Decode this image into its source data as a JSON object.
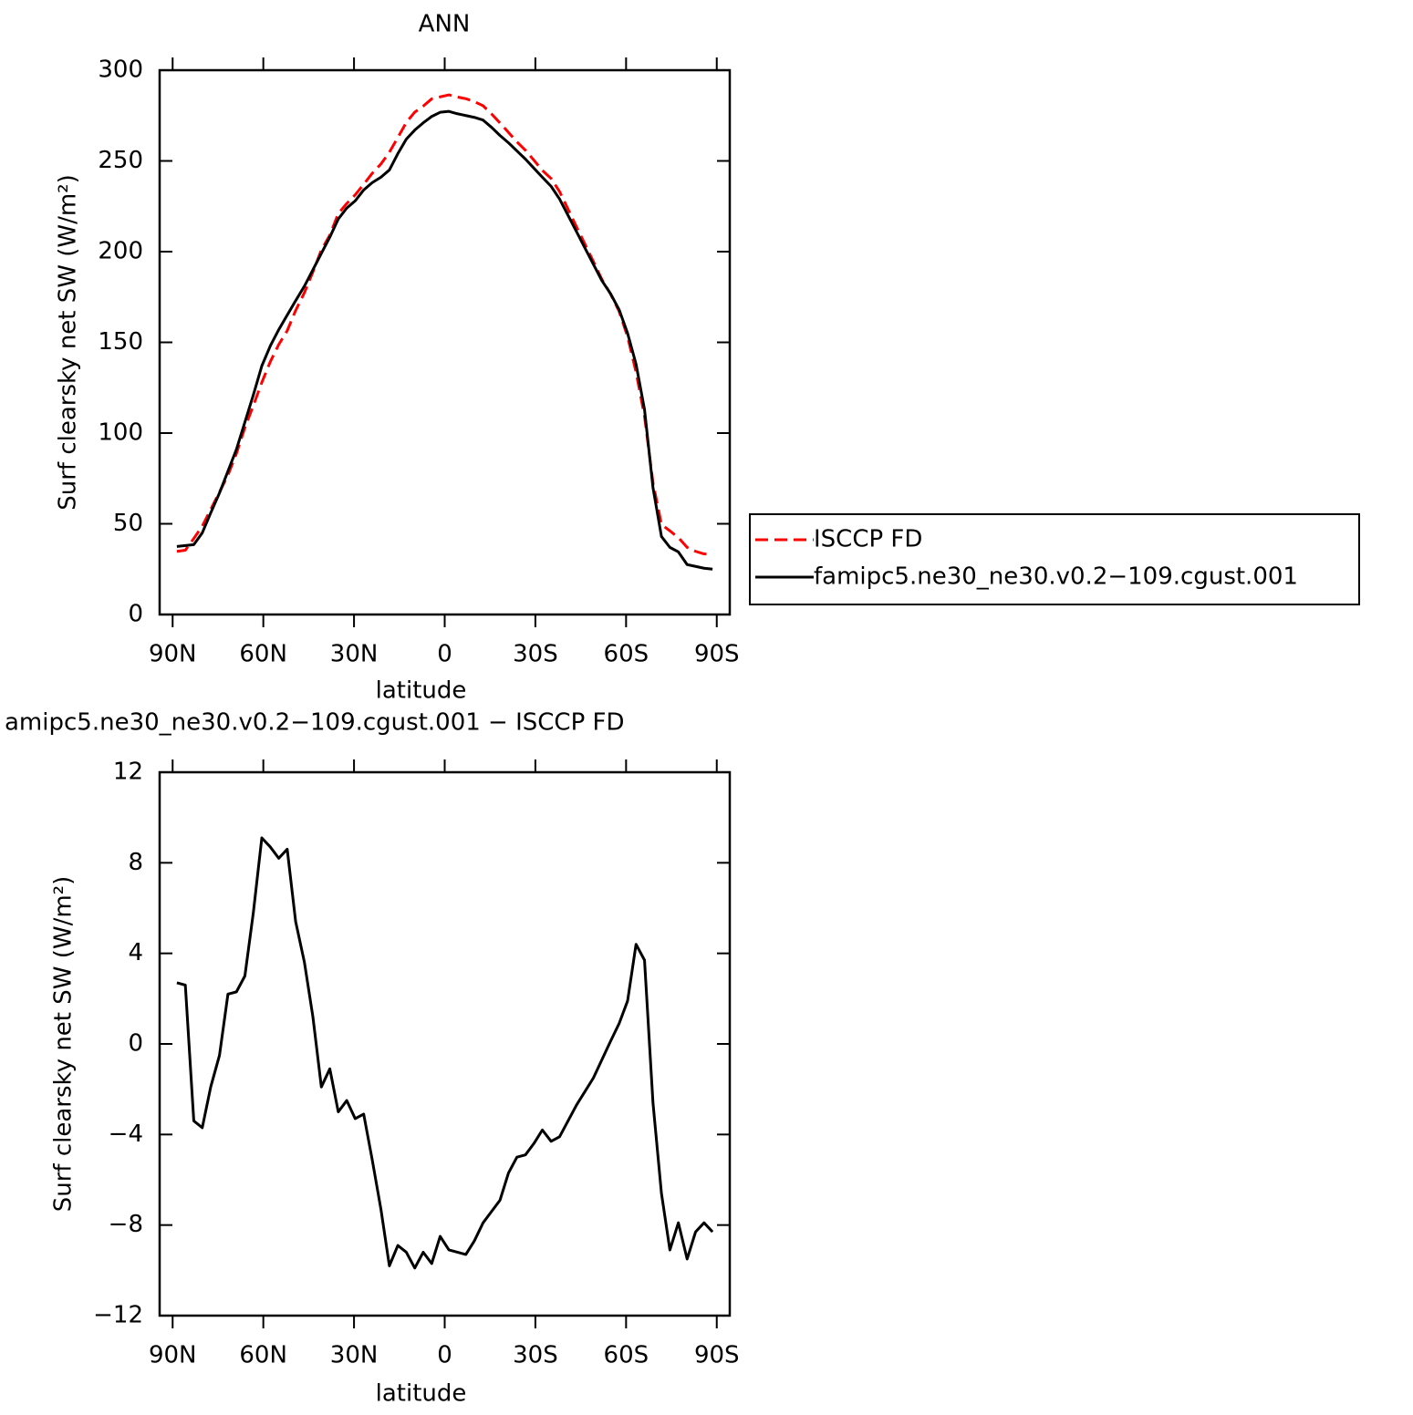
{
  "chart_data": [
    {
      "type": "line",
      "title": "ANN",
      "xlabel": "latitude",
      "ylabel": "Surf clearsky net SW (W/m²)",
      "x": [
        88.6,
        85.8,
        83.0,
        80.2,
        77.4,
        74.5,
        71.7,
        68.9,
        66.1,
        63.3,
        60.5,
        57.7,
        54.9,
        52.1,
        49.3,
        46.4,
        43.6,
        40.8,
        38.0,
        35.2,
        32.4,
        29.6,
        26.8,
        24.0,
        21.1,
        18.3,
        15.5,
        12.7,
        9.9,
        7.1,
        4.3,
        1.5,
        -1.4,
        -4.2,
        -7.0,
        -9.8,
        -12.7,
        -15.5,
        -18.3,
        -21.1,
        -23.9,
        -26.7,
        -29.5,
        -32.3,
        -35.2,
        -38.0,
        -40.8,
        -43.6,
        -46.4,
        -49.2,
        -52.0,
        -54.8,
        -57.7,
        -60.5,
        -63.3,
        -66.1,
        -68.9,
        -71.7,
        -74.5,
        -77.3,
        -80.2,
        -83.0,
        -85.8,
        -88.6
      ],
      "series": [
        {
          "name": "ISCCP FD",
          "color": "#ff0000",
          "linestyle": "dashed",
          "values": [
            34.8,
            35.4,
            41.9,
            48.7,
            57.9,
            67.5,
            76.8,
            88.7,
            103,
            115.2,
            127.9,
            139.3,
            148.8,
            156.4,
            167.6,
            177.4,
            188.8,
            200.9,
            209.1,
            221,
            226.5,
            231.3,
            237.1,
            243.1,
            248.3,
            254.8,
            262.9,
            271.2,
            276.9,
            280.2,
            284.2,
            285.3,
            286.4,
            285.2,
            284.3,
            282.7,
            280.4,
            275.9,
            270.9,
            265.7,
            260.5,
            255.9,
            250.4,
            244.8,
            240.3,
            233.1,
            223.4,
            213.7,
            204.1,
            194.5,
            184.7,
            176.9,
            167.1,
            153.1,
            133.6,
            109.3,
            72.6,
            49.6,
            46.1,
            42.4,
            37,
            34.8,
            33.4,
            33.3
          ]
        },
        {
          "name": "famipc5.ne30_ne30.v0.2−109.cgust.001",
          "color": "#000000",
          "linestyle": "solid",
          "values": [
            37.5,
            38,
            38.5,
            45,
            56,
            67,
            79,
            91,
            106,
            121,
            137,
            148,
            157,
            165,
            173,
            181,
            190,
            199,
            208,
            218,
            224,
            228,
            234,
            238,
            241,
            245,
            254,
            262,
            267,
            271,
            274.5,
            276.8,
            277.3,
            276,
            275,
            274,
            272.5,
            268.5,
            264,
            260,
            255.5,
            251,
            246,
            241,
            236,
            229,
            220,
            211,
            202,
            193,
            184,
            177,
            168,
            155,
            138,
            113,
            70,
            43,
            37,
            34.5,
            27.5,
            26.5,
            25.5,
            25
          ]
        }
      ],
      "xlim": [
        94.3,
        -94.3
      ],
      "ylim": [
        0,
        300
      ],
      "xticks": [
        {
          "value": 90,
          "label": "90N"
        },
        {
          "value": 60,
          "label": "60N"
        },
        {
          "value": 30,
          "label": "30N"
        },
        0,
        {
          "value": -30,
          "label": "30S"
        },
        {
          "value": -60,
          "label": "60S"
        },
        {
          "value": -90,
          "label": "90S"
        }
      ],
      "yticks": [
        0,
        50,
        100,
        150,
        200,
        250,
        300
      ]
    },
    {
      "type": "line",
      "title": "amipc5.ne30_ne30.v0.2−109.cgust.001 − ISCCP FD",
      "xlabel": "latitude",
      "ylabel": "Surf clearsky net SW (W/m²)",
      "x": [
        88.6,
        85.8,
        83.0,
        80.2,
        77.4,
        74.5,
        71.7,
        68.9,
        66.1,
        63.3,
        60.5,
        57.7,
        54.9,
        52.1,
        49.3,
        46.4,
        43.6,
        40.8,
        38.0,
        35.2,
        32.4,
        29.6,
        26.8,
        24.0,
        21.1,
        18.3,
        15.5,
        12.7,
        9.9,
        7.1,
        4.3,
        1.5,
        -1.4,
        -4.2,
        -7.0,
        -9.8,
        -12.7,
        -15.5,
        -18.3,
        -21.1,
        -23.9,
        -26.7,
        -29.5,
        -32.3,
        -35.2,
        -38.0,
        -40.8,
        -43.6,
        -46.4,
        -49.2,
        -52.0,
        -54.8,
        -57.7,
        -60.5,
        -63.3,
        -66.1,
        -68.9,
        -71.7,
        -74.5,
        -77.3,
        -80.2,
        -83.0,
        -85.8,
        -88.6
      ],
      "series": [
        {
          "color": "#000000",
          "linestyle": "solid",
          "values": [
            2.7,
            2.6,
            -3.4,
            -3.7,
            -1.9,
            -0.5,
            2.2,
            2.3,
            3.0,
            5.8,
            9.1,
            8.7,
            8.2,
            8.6,
            5.4,
            3.6,
            1.2,
            -1.9,
            -1.1,
            -3.0,
            -2.5,
            -3.3,
            -3.1,
            -5.1,
            -7.3,
            -9.8,
            -8.9,
            -9.2,
            -9.9,
            -9.2,
            -9.7,
            -8.5,
            -9.1,
            -9.2,
            -9.3,
            -8.7,
            -7.9,
            -7.4,
            -6.9,
            -5.7,
            -5.0,
            -4.9,
            -4.4,
            -3.8,
            -4.3,
            -4.1,
            -3.4,
            -2.7,
            -2.1,
            -1.5,
            -0.7,
            0.1,
            0.9,
            1.9,
            4.4,
            3.7,
            -2.6,
            -6.6,
            -9.1,
            -7.9,
            -9.5,
            -8.3,
            -7.9,
            -8.3
          ]
        }
      ],
      "xlim": [
        94.3,
        -94.3
      ],
      "ylim": [
        -12,
        12
      ],
      "xticks": [
        {
          "value": 90,
          "label": "90N"
        },
        {
          "value": 60,
          "label": "60N"
        },
        {
          "value": 30,
          "label": "30N"
        },
        0,
        {
          "value": -30,
          "label": "30S"
        },
        {
          "value": -60,
          "label": "60S"
        },
        {
          "value": -90,
          "label": "90S"
        }
      ],
      "yticks": [
        {
          "value": -12,
          "label": "−12"
        },
        {
          "value": -8,
          "label": "−8"
        },
        {
          "value": -4,
          "label": "−4"
        },
        0,
        4,
        8,
        12
      ]
    }
  ]
}
